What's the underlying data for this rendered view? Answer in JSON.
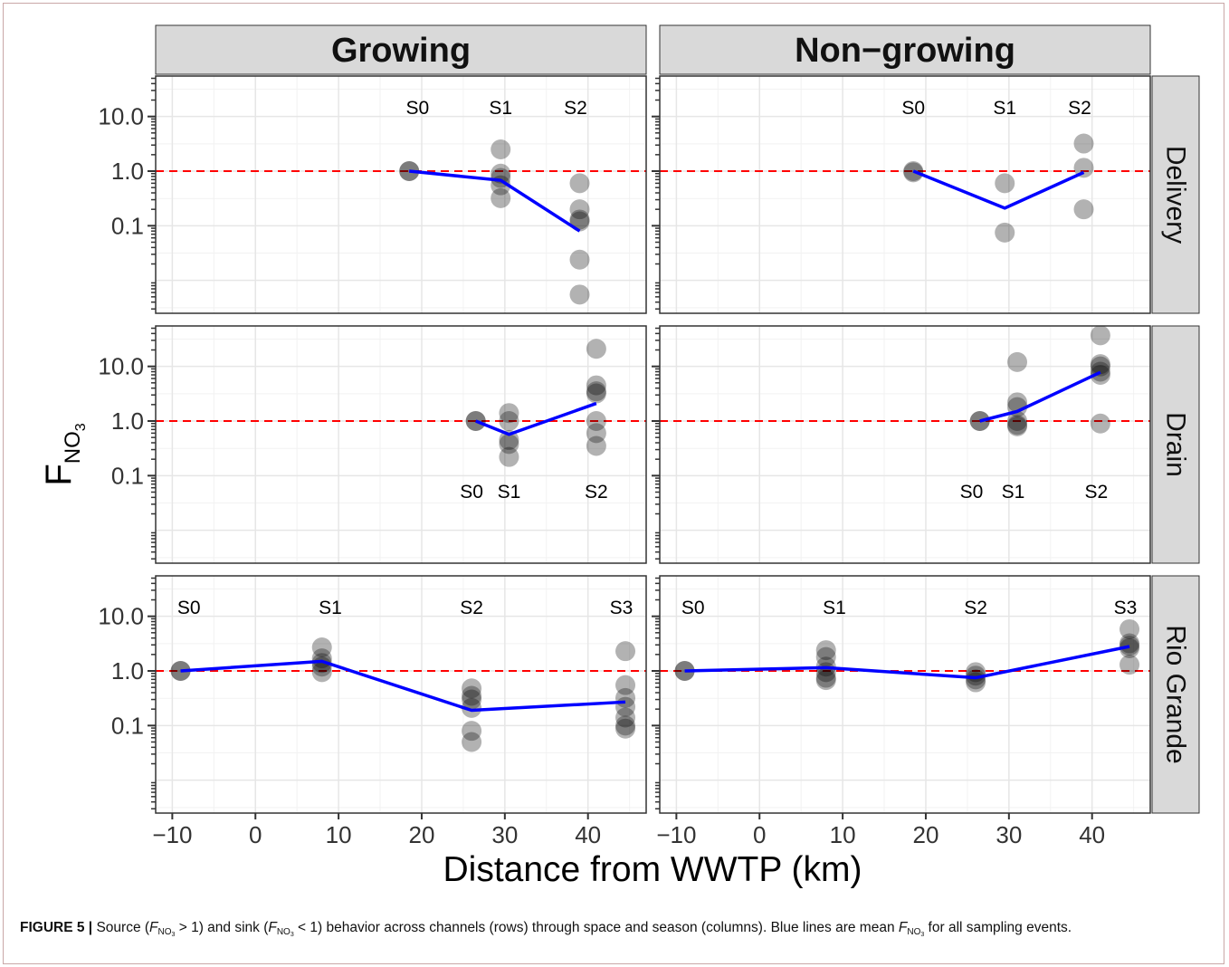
{
  "figure": {
    "ylabel_main": "F",
    "ylabel_sub": "NO",
    "ylabel_subsub": "3",
    "xlabel": "Distance from WWTP (km)",
    "caption": {
      "label": "FIGURE 5 |",
      "t1": " Source (",
      "f": "F",
      "fsub": "NO",
      "fsubsub": "3",
      "t2": " > 1) and sink (",
      "t3": " < 1) behavior across channels (rows) through space and season (columns). Blue lines are mean ",
      "t4": " for all sampling events."
    }
  },
  "colors": {
    "strip_bg": "#d9d9d9",
    "strip_border": "#333333",
    "panel_border": "#333333",
    "grid_major": "#e6e6e6",
    "grid_minor": "#f2f2f2",
    "mean_line": "#0000ff",
    "reference_line": "#ff0000",
    "point": "#000000"
  },
  "chart_data": {
    "type": "scatter",
    "xlabel": "Distance from WWTP (km)",
    "ylabel": "F_NO3",
    "x_ticks": [
      "−10",
      "0",
      "10",
      "20",
      "30",
      "40"
    ],
    "x_tick_values": [
      -10,
      0,
      10,
      20,
      30,
      40
    ],
    "xlim": [
      -12,
      47
    ],
    "y_scale": "log",
    "y_ticks": [
      "10.0",
      "1.0",
      "0.1"
    ],
    "y_tick_values": [
      10,
      1,
      0.1
    ],
    "ylim": [
      0.0025,
      55
    ],
    "reference_line_y": 1,
    "grid": true,
    "columns": [
      "Growing",
      "Non−growing"
    ],
    "rows": [
      "Delivery",
      "Drain",
      "Rio Grande"
    ],
    "panels": [
      {
        "column": "Growing",
        "row": "Delivery",
        "site_labels": [
          {
            "text": "S0",
            "x": 19.5
          },
          {
            "text": "S1",
            "x": 29.5
          },
          {
            "text": "S2",
            "x": 38.5
          }
        ],
        "label_position": "top",
        "points": [
          [
            18.5,
            1.0
          ],
          [
            18.5,
            1.0
          ],
          [
            29.5,
            2.5
          ],
          [
            29.5,
            0.9
          ],
          [
            29.5,
            0.75
          ],
          [
            29.5,
            0.55
          ],
          [
            29.5,
            0.32
          ],
          [
            39,
            0.6
          ],
          [
            39,
            0.2
          ],
          [
            39,
            0.13
          ],
          [
            39,
            0.12
          ],
          [
            39,
            0.024
          ],
          [
            39,
            0.0055
          ]
        ],
        "mean": [
          [
            18.5,
            1.0
          ],
          [
            29.5,
            0.68
          ],
          [
            39,
            0.08
          ]
        ]
      },
      {
        "column": "Non−growing",
        "row": "Delivery",
        "site_labels": [
          {
            "text": "S0",
            "x": 18.5
          },
          {
            "text": "S1",
            "x": 29.5
          },
          {
            "text": "S2",
            "x": 38.5
          }
        ],
        "label_position": "top",
        "points": [
          [
            18.5,
            1.0
          ],
          [
            18.5,
            0.95
          ],
          [
            29.5,
            0.6
          ],
          [
            29.5,
            0.075
          ],
          [
            39,
            3.2
          ],
          [
            39,
            1.15
          ],
          [
            39,
            0.2
          ]
        ],
        "mean": [
          [
            18.5,
            1.0
          ],
          [
            29.5,
            0.21
          ],
          [
            39,
            0.95
          ]
        ]
      },
      {
        "column": "Growing",
        "row": "Drain",
        "site_labels": [
          {
            "text": "S0",
            "x": 26
          },
          {
            "text": "S1",
            "x": 30.5
          },
          {
            "text": "S2",
            "x": 41
          }
        ],
        "label_position": "bottom",
        "points": [
          [
            26.5,
            1.0
          ],
          [
            26.5,
            1.0
          ],
          [
            30.5,
            1.4
          ],
          [
            30.5,
            1.0
          ],
          [
            30.5,
            0.45
          ],
          [
            30.5,
            0.38
          ],
          [
            30.5,
            0.22
          ],
          [
            41,
            21
          ],
          [
            41,
            4.5
          ],
          [
            41,
            3.5
          ],
          [
            41,
            3.2
          ],
          [
            41,
            1.0
          ],
          [
            41,
            0.6
          ],
          [
            41,
            0.35
          ]
        ],
        "mean": [
          [
            26.5,
            1.0
          ],
          [
            30.5,
            0.57
          ],
          [
            41,
            2.1
          ]
        ]
      },
      {
        "column": "Non−growing",
        "row": "Drain",
        "site_labels": [
          {
            "text": "S0",
            "x": 25.5
          },
          {
            "text": "S1",
            "x": 30.5
          },
          {
            "text": "S2",
            "x": 40.5
          }
        ],
        "label_position": "bottom",
        "points": [
          [
            26.5,
            1.0
          ],
          [
            26.5,
            1.0
          ],
          [
            31,
            12
          ],
          [
            31,
            2.2
          ],
          [
            31,
            1.8
          ],
          [
            31,
            1.0
          ],
          [
            31,
            0.85
          ],
          [
            31,
            0.8
          ],
          [
            41,
            37
          ],
          [
            41,
            11
          ],
          [
            41,
            10
          ],
          [
            41,
            8
          ],
          [
            41,
            7
          ],
          [
            41,
            0.9
          ]
        ],
        "mean": [
          [
            26.5,
            1.0
          ],
          [
            31,
            1.5
          ],
          [
            41,
            7.8
          ]
        ]
      },
      {
        "column": "Growing",
        "row": "Rio Grande",
        "site_labels": [
          {
            "text": "S0",
            "x": -8
          },
          {
            "text": "S1",
            "x": 9
          },
          {
            "text": "S2",
            "x": 26
          },
          {
            "text": "S3",
            "x": 44
          }
        ],
        "label_position": "top",
        "points": [
          [
            -9,
            1.0
          ],
          [
            -9,
            1.0
          ],
          [
            8,
            2.7
          ],
          [
            8,
            1.7
          ],
          [
            8,
            1.4
          ],
          [
            8,
            1.2
          ],
          [
            8,
            0.95
          ],
          [
            26,
            0.48
          ],
          [
            26,
            0.35
          ],
          [
            26,
            0.3
          ],
          [
            26,
            0.21
          ],
          [
            26,
            0.08
          ],
          [
            26,
            0.05
          ],
          [
            44.5,
            2.3
          ],
          [
            44.5,
            0.55
          ],
          [
            44.5,
            0.32
          ],
          [
            44.5,
            0.22
          ],
          [
            44.5,
            0.14
          ],
          [
            44.5,
            0.1
          ],
          [
            44.5,
            0.088
          ]
        ],
        "mean": [
          [
            -9,
            1.0
          ],
          [
            8,
            1.5
          ],
          [
            26,
            0.19
          ],
          [
            44.5,
            0.27
          ]
        ]
      },
      {
        "column": "Non−growing",
        "row": "Rio Grande",
        "site_labels": [
          {
            "text": "S0",
            "x": -8
          },
          {
            "text": "S1",
            "x": 9
          },
          {
            "text": "S2",
            "x": 26
          },
          {
            "text": "S3",
            "x": 44
          }
        ],
        "label_position": "top",
        "points": [
          [
            -9,
            1.0
          ],
          [
            -9,
            1.0
          ],
          [
            8,
            2.4
          ],
          [
            8,
            1.8
          ],
          [
            8,
            1.2
          ],
          [
            8,
            0.95
          ],
          [
            8,
            0.75
          ],
          [
            8,
            0.68
          ],
          [
            26,
            0.95
          ],
          [
            26,
            0.82
          ],
          [
            26,
            0.7
          ],
          [
            26,
            0.62
          ],
          [
            44.5,
            5.8
          ],
          [
            44.5,
            3.2
          ],
          [
            44.5,
            2.9
          ],
          [
            44.5,
            2.6
          ],
          [
            44.5,
            1.3
          ]
        ],
        "mean": [
          [
            -9,
            1.0
          ],
          [
            8,
            1.15
          ],
          [
            26,
            0.75
          ],
          [
            44.5,
            2.8
          ]
        ]
      }
    ]
  }
}
